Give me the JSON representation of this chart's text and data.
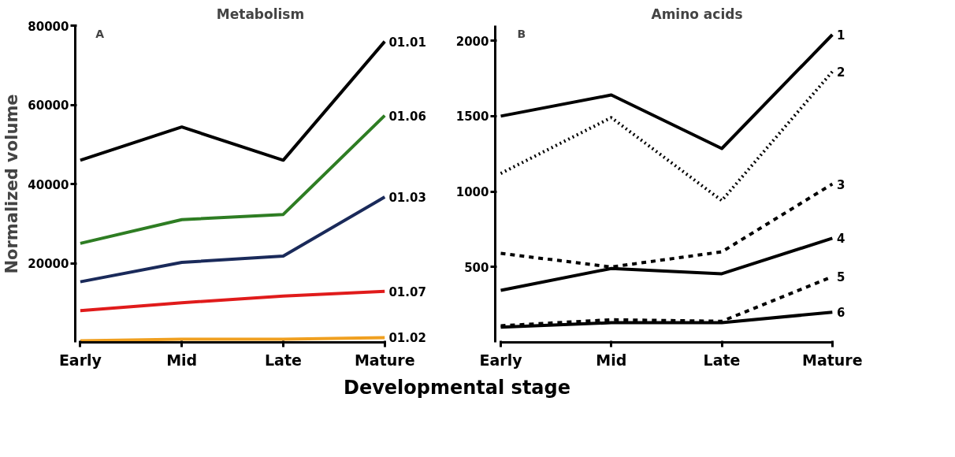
{
  "chart_data": [
    {
      "type": "line",
      "title": "Metabolism",
      "ylabel": "Normalized volume",
      "xlabel": "Developmental stage",
      "annotations": [
        "A"
      ],
      "categories": [
        "Early",
        "Mid",
        "Late",
        "Mature"
      ],
      "ylim": [
        0,
        80000
      ],
      "yticks": [
        20000,
        40000,
        60000,
        80000
      ],
      "grid": false,
      "marker": "none",
      "series": [
        {
          "name": "01.01",
          "color": "#000000",
          "line_style": "solid",
          "values": [
            46000,
            54400,
            46000,
            76000
          ]
        },
        {
          "name": "01.06",
          "color": "#2e7d23",
          "line_style": "solid",
          "values": [
            25000,
            31000,
            32300,
            57300
          ]
        },
        {
          "name": "01.03",
          "color": "#1a2a5a",
          "line_style": "solid",
          "values": [
            15300,
            20200,
            21800,
            36700
          ]
        },
        {
          "name": "01.07",
          "color": "#e01b1b",
          "line_style": "solid",
          "values": [
            8000,
            10000,
            11700,
            12900
          ]
        },
        {
          "name": "01.02",
          "color": "#f0a020",
          "line_style": "solid",
          "values": [
            400,
            800,
            800,
            1200
          ]
        }
      ]
    },
    {
      "type": "line",
      "title": "Amino acids",
      "annotations": [
        "B"
      ],
      "categories": [
        "Early",
        "Mid",
        "Late",
        "Mature"
      ],
      "ylim": [
        0,
        2100
      ],
      "yticks": [
        500,
        1000,
        1500,
        2000
      ],
      "grid": false,
      "marker": "none",
      "series": [
        {
          "name": "1",
          "color": "#000000",
          "line_style": "solid",
          "values": [
            1500,
            1640,
            1285,
            2040
          ]
        },
        {
          "name": "2",
          "color": "#000000",
          "line_style": "dotted",
          "values": [
            1120,
            1490,
            940,
            1795
          ]
        },
        {
          "name": "3",
          "color": "#000000",
          "line_style": "dashed",
          "values": [
            590,
            500,
            600,
            1050
          ]
        },
        {
          "name": "4",
          "color": "#000000",
          "line_style": "solid",
          "values": [
            345,
            490,
            455,
            690
          ]
        },
        {
          "name": "5",
          "color": "#000000",
          "line_style": "dashed",
          "values": [
            110,
            150,
            140,
            435
          ]
        },
        {
          "name": "6",
          "color": "#000000",
          "line_style": "solid",
          "values": [
            100,
            130,
            130,
            200
          ]
        }
      ]
    }
  ]
}
